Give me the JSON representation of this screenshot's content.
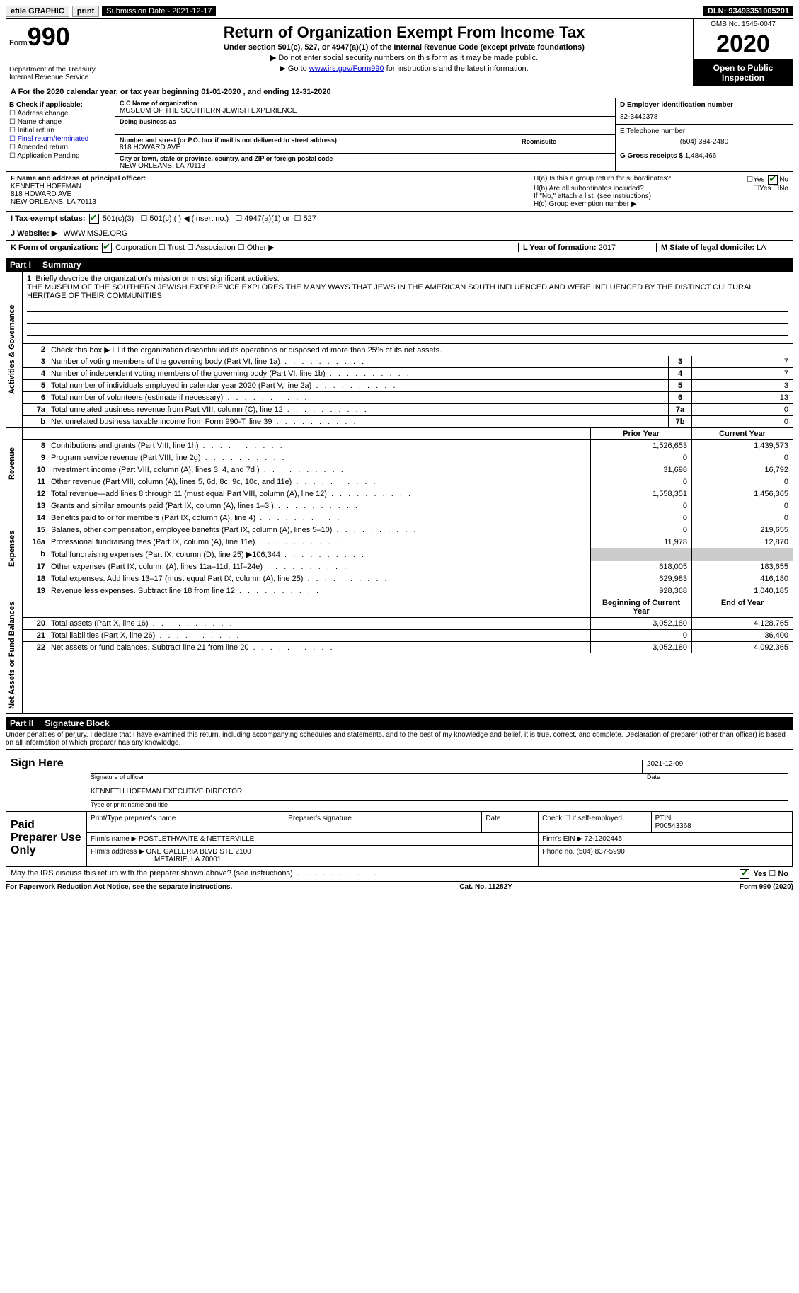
{
  "topbar": {
    "efile": "efile GRAPHIC",
    "print": "print",
    "sub_date_label": "Submission Date - 2021-12-17",
    "dln": "DLN: 93493351005201"
  },
  "header": {
    "form_label": "Form",
    "form_number": "990",
    "dept": "Department of the Treasury",
    "irs": "Internal Revenue Service",
    "title": "Return of Organization Exempt From Income Tax",
    "subtitle": "Under section 501(c), 527, or 4947(a)(1) of the Internal Revenue Code (except private foundations)",
    "instr1": "▶ Do not enter social security numbers on this form as it may be made public.",
    "instr2_pre": "▶ Go to ",
    "instr2_link": "www.irs.gov/Form990",
    "instr2_post": " for instructions and the latest information.",
    "omb": "OMB No. 1545-0047",
    "year": "2020",
    "open": "Open to Public Inspection"
  },
  "line_a": "For the 2020 calendar year, or tax year beginning 01-01-2020   , and ending 12-31-2020",
  "box_b": {
    "label": "B Check if applicable:",
    "opts": [
      "Address change",
      "Name change",
      "Initial return",
      "Final return/terminated",
      "Amended return",
      "Application Pending"
    ]
  },
  "box_c": {
    "name_label": "C Name of organization",
    "name": "MUSEUM OF THE SOUTHERN JEWISH EXPERIENCE",
    "dba_label": "Doing business as",
    "street_label": "Number and street (or P.O. box if mail is not delivered to street address)",
    "room_label": "Room/suite",
    "street": "818 HOWARD AVE",
    "city_label": "City or town, state or province, country, and ZIP or foreign postal code",
    "city": "NEW ORLEANS, LA  70113"
  },
  "box_d": {
    "ein_label": "D Employer identification number",
    "ein": "82-3442378",
    "tel_label": "E Telephone number",
    "tel": "(504) 384-2480",
    "gross_label": "G Gross receipts $",
    "gross": "1,484,466"
  },
  "box_f": {
    "label": "F  Name and address of principal officer:",
    "name": "KENNETH HOFFMAN",
    "street": "818 HOWARD AVE",
    "city": "NEW ORLEANS, LA  70113"
  },
  "box_h": {
    "ha": "H(a)  Is this a group return for subordinates?",
    "hb": "H(b)  Are all subordinates included?",
    "hb_note": "If \"No,\" attach a list. (see instructions)",
    "hc": "H(c)  Group exemption number ▶",
    "yes": "Yes",
    "no": "No"
  },
  "row_i": {
    "label": "I  Tax-exempt status:",
    "opt1": "501(c)(3)",
    "opt2": "501(c) (  ) ◀ (insert no.)",
    "opt3": "4947(a)(1) or",
    "opt4": "527"
  },
  "row_j": {
    "label": "J  Website: ▶",
    "value": "WWW.MSJE.ORG"
  },
  "row_k": {
    "label": "K Form of organization:",
    "corp": "Corporation",
    "trust": "Trust",
    "assoc": "Association",
    "other": "Other ▶",
    "l_label": "L Year of formation:",
    "l_val": "2017",
    "m_label": "M State of legal domicile:",
    "m_val": "LA"
  },
  "part1": {
    "label": "Part I",
    "title": "Summary",
    "sections": {
      "gov": "Activities & Governance",
      "rev": "Revenue",
      "exp": "Expenses",
      "net": "Net Assets or Fund Balances"
    },
    "mission_label": "Briefly describe the organization's mission or most significant activities:",
    "mission": "THE MUSEUM OF THE SOUTHERN JEWISH EXPERIENCE EXPLORES THE MANY WAYS THAT JEWS IN THE AMERICAN SOUTH INFLUENCED AND WERE INFLUENCED BY THE DISTINCT CULTURAL HERITAGE OF THEIR COMMUNITIES.",
    "line2": "Check this box ▶ ☐  if the organization discontinued its operations or disposed of more than 25% of its net assets.",
    "lines_single": [
      {
        "n": "3",
        "d": "Number of voting members of the governing body (Part VI, line 1a)",
        "box": "3",
        "v": "7"
      },
      {
        "n": "4",
        "d": "Number of independent voting members of the governing body (Part VI, line 1b)",
        "box": "4",
        "v": "7"
      },
      {
        "n": "5",
        "d": "Total number of individuals employed in calendar year 2020 (Part V, line 2a)",
        "box": "5",
        "v": "3"
      },
      {
        "n": "6",
        "d": "Total number of volunteers (estimate if necessary)",
        "box": "6",
        "v": "13"
      },
      {
        "n": "7a",
        "d": "Total unrelated business revenue from Part VIII, column (C), line 12",
        "box": "7a",
        "v": "0"
      },
      {
        "n": "b",
        "d": "Net unrelated business taxable income from Form 990-T, line 39",
        "box": "7b",
        "v": "0"
      }
    ],
    "col_prior": "Prior Year",
    "col_curr": "Current Year",
    "col_begin": "Beginning of Current Year",
    "col_end": "End of Year",
    "rev_lines": [
      {
        "n": "8",
        "d": "Contributions and grants (Part VIII, line 1h)",
        "p": "1,526,653",
        "c": "1,439,573"
      },
      {
        "n": "9",
        "d": "Program service revenue (Part VIII, line 2g)",
        "p": "0",
        "c": "0"
      },
      {
        "n": "10",
        "d": "Investment income (Part VIII, column (A), lines 3, 4, and 7d )",
        "p": "31,698",
        "c": "16,792"
      },
      {
        "n": "11",
        "d": "Other revenue (Part VIII, column (A), lines 5, 6d, 8c, 9c, 10c, and 11e)",
        "p": "0",
        "c": "0"
      },
      {
        "n": "12",
        "d": "Total revenue—add lines 8 through 11 (must equal Part VIII, column (A), line 12)",
        "p": "1,558,351",
        "c": "1,456,365"
      }
    ],
    "exp_lines": [
      {
        "n": "13",
        "d": "Grants and similar amounts paid (Part IX, column (A), lines 1–3 )",
        "p": "0",
        "c": "0"
      },
      {
        "n": "14",
        "d": "Benefits paid to or for members (Part IX, column (A), line 4)",
        "p": "0",
        "c": "0"
      },
      {
        "n": "15",
        "d": "Salaries, other compensation, employee benefits (Part IX, column (A), lines 5–10)",
        "p": "0",
        "c": "219,655"
      },
      {
        "n": "16a",
        "d": "Professional fundraising fees (Part IX, column (A), line 11e)",
        "p": "11,978",
        "c": "12,870"
      },
      {
        "n": "b",
        "d": "Total fundraising expenses (Part IX, column (D), line 25) ▶106,344",
        "p": "",
        "c": "",
        "shaded": true
      },
      {
        "n": "17",
        "d": "Other expenses (Part IX, column (A), lines 11a–11d, 11f–24e)",
        "p": "618,005",
        "c": "183,655"
      },
      {
        "n": "18",
        "d": "Total expenses. Add lines 13–17 (must equal Part IX, column (A), line 25)",
        "p": "629,983",
        "c": "416,180"
      },
      {
        "n": "19",
        "d": "Revenue less expenses. Subtract line 18 from line 12",
        "p": "928,368",
        "c": "1,040,185"
      }
    ],
    "net_lines": [
      {
        "n": "20",
        "d": "Total assets (Part X, line 16)",
        "p": "3,052,180",
        "c": "4,128,765"
      },
      {
        "n": "21",
        "d": "Total liabilities (Part X, line 26)",
        "p": "0",
        "c": "36,400"
      },
      {
        "n": "22",
        "d": "Net assets or fund balances. Subtract line 21 from line 20",
        "p": "3,052,180",
        "c": "4,092,365"
      }
    ]
  },
  "part2": {
    "label": "Part II",
    "title": "Signature Block",
    "penalty": "Under penalties of perjury, I declare that I have examined this return, including accompanying schedules and statements, and to the best of my knowledge and belief, it is true, correct, and complete. Declaration of preparer (other than officer) is based on all information of which preparer has any knowledge.",
    "sign_here": "Sign Here",
    "sig_officer": "Signature of officer",
    "sig_date": "2021-12-09",
    "date_label": "Date",
    "officer_name": "KENNETH HOFFMAN  EXECUTIVE DIRECTOR",
    "type_name": "Type or print name and title",
    "paid_prep": "Paid Preparer Use Only",
    "pt_name_label": "Print/Type preparer's name",
    "pt_sig_label": "Preparer's signature",
    "pt_date_label": "Date",
    "pt_check": "Check ☐ if self-employed",
    "ptin_label": "PTIN",
    "ptin": "P00543368",
    "firm_name_label": "Firm's name   ▶",
    "firm_name": "POSTLETHWAITE & NETTERVILLE",
    "firm_ein_label": "Firm's EIN ▶",
    "firm_ein": "72-1202445",
    "firm_addr_label": "Firm's address ▶",
    "firm_addr": "ONE GALLERIA BLVD STE 2100",
    "firm_city": "METAIRIE, LA  70001",
    "phone_label": "Phone no.",
    "phone": "(504) 837-5990",
    "discuss": "May the IRS discuss this return with the preparer shown above? (see instructions)",
    "yes": "Yes",
    "no": "No"
  },
  "footer": {
    "pra": "For Paperwork Reduction Act Notice, see the separate instructions.",
    "cat": "Cat. No. 11282Y",
    "form": "Form 990 (2020)"
  }
}
